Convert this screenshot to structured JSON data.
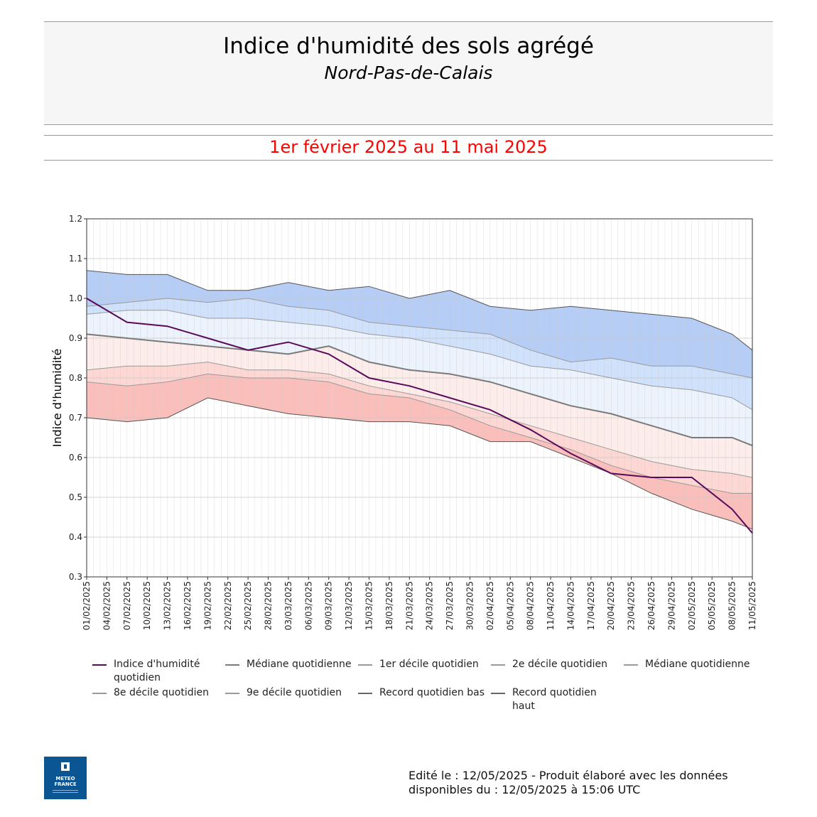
{
  "header": {
    "title": "Indice d'humidité des sols agrégé",
    "subtitle": "Nord-Pas-de-Calais",
    "period": "1er février 2025 au 11 mai 2025"
  },
  "logo": {
    "icon": "meteo-france-logo",
    "text": "METEO FRANCE"
  },
  "footer": {
    "line1": "Edité le : 12/05/2025 - Produit élaboré avec les données",
    "line2": "disponibles du : 12/05/2025 à 15:06 UTC"
  },
  "chart_data": {
    "type": "area",
    "ylabel": "Indice d'humidité",
    "ylim": [
      0.3,
      1.2
    ],
    "yticks": [
      "0.3",
      "0.4",
      "0.5",
      "0.6",
      "0.7",
      "0.8",
      "0.9",
      "1.0",
      "1.1",
      "1.2"
    ],
    "x_start": "01/02/2025",
    "x_end": "11/05/2025",
    "xticks": [
      "01/02/2025",
      "04/02/2025",
      "07/02/2025",
      "10/02/2025",
      "13/02/2025",
      "16/02/2025",
      "19/02/2025",
      "22/02/2025",
      "25/02/2025",
      "28/02/2025",
      "03/03/2025",
      "06/03/2025",
      "09/03/2025",
      "12/03/2025",
      "15/03/2025",
      "18/03/2025",
      "21/03/2025",
      "24/03/2025",
      "27/03/2025",
      "30/03/2025",
      "02/04/2025",
      "05/04/2025",
      "08/04/2025",
      "11/04/2025",
      "14/04/2025",
      "17/04/2025",
      "20/04/2025",
      "23/04/2025",
      "26/04/2025",
      "29/04/2025",
      "02/05/2025",
      "05/05/2025",
      "08/05/2025",
      "11/05/2025"
    ],
    "grid": true,
    "band_colors": [
      "#fbbfbb",
      "#fdd7d3",
      "#fdedea",
      "#ecf3fd",
      "#cfe1fb",
      "#b6cdf6"
    ],
    "legend": [
      {
        "name": "Indice d'humidité quotidien",
        "color": "#5a0a5a"
      },
      {
        "name": "Médiane quotidienne",
        "color": "#7a7a7a"
      },
      {
        "name": "1er décile quotidien",
        "color": "#999999"
      },
      {
        "name": "2e décile quotidien",
        "color": "#999999"
      },
      {
        "name": "Médiane quotidienne",
        "color": "#999999"
      },
      {
        "name": "8e décile quotidien",
        "color": "#999999"
      },
      {
        "name": "9e décile quotidien",
        "color": "#999999"
      },
      {
        "name": "Record quotidien bas",
        "color": "#666666"
      },
      {
        "name": "Record quotidien haut",
        "color": "#666666"
      }
    ],
    "series_x_days": [
      0,
      6,
      12,
      18,
      24,
      30,
      36,
      42,
      48,
      54,
      60,
      66,
      72,
      78,
      84,
      90,
      96,
      99
    ],
    "series": [
      {
        "name": "Record quotidien haut",
        "values": [
          1.07,
          1.06,
          1.06,
          1.02,
          1.02,
          1.04,
          1.02,
          1.03,
          1.0,
          1.02,
          0.98,
          0.97,
          0.98,
          0.97,
          0.96,
          0.95,
          0.91,
          0.87
        ]
      },
      {
        "name": "9e décile quotidien",
        "values": [
          0.98,
          0.99,
          1.0,
          0.99,
          1.0,
          0.98,
          0.97,
          0.94,
          0.93,
          0.92,
          0.91,
          0.87,
          0.84,
          0.85,
          0.83,
          0.83,
          0.81,
          0.8
        ]
      },
      {
        "name": "8e décile quotidien",
        "values": [
          0.96,
          0.97,
          0.97,
          0.95,
          0.95,
          0.94,
          0.93,
          0.91,
          0.9,
          0.88,
          0.86,
          0.83,
          0.82,
          0.8,
          0.78,
          0.77,
          0.75,
          0.72
        ]
      },
      {
        "name": "Médiane quotidienne",
        "values": [
          0.91,
          0.9,
          0.89,
          0.88,
          0.87,
          0.86,
          0.88,
          0.84,
          0.82,
          0.81,
          0.79,
          0.76,
          0.73,
          0.71,
          0.68,
          0.65,
          0.65,
          0.63
        ]
      },
      {
        "name": "2e décile quotidien",
        "values": [
          0.82,
          0.83,
          0.83,
          0.84,
          0.82,
          0.82,
          0.81,
          0.78,
          0.76,
          0.74,
          0.71,
          0.68,
          0.65,
          0.62,
          0.59,
          0.57,
          0.56,
          0.55
        ]
      },
      {
        "name": "1er décile quotidien",
        "values": [
          0.79,
          0.78,
          0.79,
          0.81,
          0.8,
          0.8,
          0.79,
          0.76,
          0.75,
          0.72,
          0.68,
          0.65,
          0.62,
          0.58,
          0.55,
          0.53,
          0.51,
          0.51
        ]
      },
      {
        "name": "Record quotidien bas",
        "values": [
          0.7,
          0.69,
          0.7,
          0.75,
          0.73,
          0.71,
          0.7,
          0.69,
          0.69,
          0.68,
          0.64,
          0.64,
          0.6,
          0.56,
          0.51,
          0.47,
          0.44,
          0.42
        ]
      },
      {
        "name": "Indice d'humidité quotidien",
        "values": [
          1.0,
          0.94,
          0.93,
          0.9,
          0.87,
          0.89,
          0.86,
          0.8,
          0.78,
          0.75,
          0.72,
          0.67,
          0.61,
          0.56,
          0.55,
          0.55,
          0.47,
          0.41
        ]
      }
    ]
  }
}
